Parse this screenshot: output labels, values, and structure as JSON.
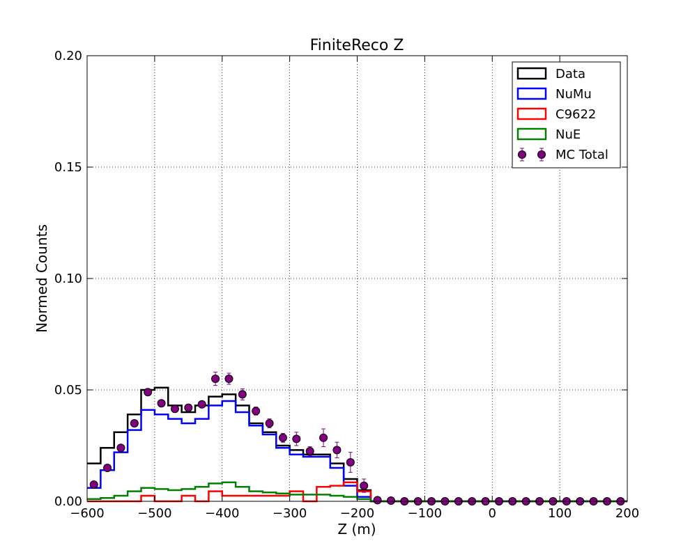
{
  "chart_data": {
    "type": "step",
    "title": "FiniteReco Z",
    "xlabel": "Z (m)",
    "ylabel": "Normed Counts",
    "xlim": [
      -600,
      200
    ],
    "ylim": [
      0,
      0.2
    ],
    "xticks": [
      -600,
      -500,
      -400,
      -300,
      -200,
      -100,
      0,
      100,
      200
    ],
    "xtick_labels": [
      "−600",
      "−500",
      "−400",
      "−300",
      "−200",
      "−100",
      "0",
      "100",
      "200"
    ],
    "yticks": [
      0,
      0.05,
      0.1,
      0.15,
      0.2
    ],
    "ytick_labels": [
      "0.00",
      "0.05",
      "0.10",
      "0.15",
      "0.20"
    ],
    "grid": true,
    "legend_position": "top-right",
    "bin_edges": [
      -600,
      -580,
      -560,
      -540,
      -520,
      -500,
      -480,
      -460,
      -440,
      -420,
      -400,
      -380,
      -360,
      -340,
      -320,
      -300,
      -280,
      -260,
      -240,
      -220,
      -200,
      -180,
      -160,
      -140,
      -120,
      -100,
      -80,
      -60,
      -40,
      -20,
      0,
      20,
      40,
      60,
      80,
      100,
      120,
      140,
      160,
      180,
      200
    ],
    "series": [
      {
        "name": "Data",
        "style": "step",
        "color": "#000000",
        "values": [
          0.017,
          0.024,
          0.031,
          0.039,
          0.05,
          0.051,
          0.043,
          0.04,
          0.043,
          0.047,
          0.048,
          0.043,
          0.035,
          0.031,
          0.025,
          0.023,
          0.021,
          0.021,
          0.017,
          0.01,
          0.005,
          0,
          0,
          0,
          0,
          0,
          0,
          0,
          0,
          0,
          0,
          0,
          0,
          0,
          0,
          0,
          0,
          0,
          0,
          0
        ]
      },
      {
        "name": "NuMu",
        "style": "step",
        "color": "#0000ff",
        "values": [
          0.006,
          0.014,
          0.022,
          0.032,
          0.041,
          0.039,
          0.037,
          0.035,
          0.037,
          0.043,
          0.045,
          0.04,
          0.034,
          0.03,
          0.024,
          0.021,
          0.02,
          0.02,
          0.015,
          0.007,
          0.002,
          0,
          0,
          0,
          0,
          0,
          0,
          0,
          0,
          0,
          0,
          0,
          0,
          0,
          0,
          0,
          0,
          0,
          0,
          0
        ]
      },
      {
        "name": "C9622",
        "style": "step",
        "color": "#ff0000",
        "values": [
          0,
          0,
          0,
          0,
          0.0025,
          0,
          0,
          0.0025,
          0,
          0.0045,
          0.0025,
          0.0025,
          0.0025,
          0.0025,
          0.0025,
          0.0045,
          0,
          0.0065,
          0.007,
          0.0085,
          0.0045,
          0,
          0,
          0,
          0,
          0,
          0,
          0,
          0,
          0,
          0,
          0,
          0,
          0,
          0,
          0,
          0,
          0,
          0,
          0
        ]
      },
      {
        "name": "NuE",
        "style": "step",
        "color": "#008000",
        "values": [
          0.001,
          0.0015,
          0.0025,
          0.0045,
          0.006,
          0.0055,
          0.005,
          0.0055,
          0.0065,
          0.008,
          0.0085,
          0.0065,
          0.0045,
          0.004,
          0.0035,
          0.003,
          0.003,
          0.003,
          0.0025,
          0.002,
          0.001,
          0,
          0,
          0,
          0,
          0,
          0,
          0,
          0,
          0,
          0,
          0,
          0,
          0,
          0,
          0,
          0,
          0,
          0,
          0
        ]
      },
      {
        "name": "MC Total",
        "style": "errorbar",
        "color": "#800080",
        "x": [
          -590,
          -570,
          -550,
          -530,
          -510,
          -490,
          -470,
          -450,
          -430,
          -410,
          -390,
          -370,
          -350,
          -330,
          -310,
          -290,
          -270,
          -250,
          -230,
          -210,
          -190,
          -170,
          -150,
          -130,
          -110,
          -90,
          -70,
          -50,
          -30,
          -10,
          10,
          30,
          50,
          70,
          90,
          110,
          130,
          150,
          170,
          190
        ],
        "values": [
          0.0075,
          0.015,
          0.024,
          0.035,
          0.049,
          0.044,
          0.0415,
          0.042,
          0.0435,
          0.055,
          0.055,
          0.048,
          0.0405,
          0.035,
          0.0285,
          0.028,
          0.0225,
          0.0285,
          0.023,
          0.0175,
          0.007,
          0.0005,
          0.0003,
          0,
          0,
          0,
          0,
          0,
          0,
          0,
          0,
          0,
          0,
          0,
          0,
          0,
          0,
          0,
          0,
          0
        ],
        "errors": [
          0.001,
          0.0012,
          0.0012,
          0.0012,
          0.0015,
          0.0012,
          0.0012,
          0.0015,
          0.0012,
          0.003,
          0.0025,
          0.0025,
          0.0018,
          0.002,
          0.002,
          0.003,
          0.002,
          0.004,
          0.0035,
          0.0045,
          0.003,
          0.0005,
          0.0003,
          0,
          0,
          0,
          0,
          0,
          0,
          0,
          0,
          0,
          0,
          0,
          0,
          0,
          0,
          0,
          0,
          0
        ]
      }
    ]
  }
}
